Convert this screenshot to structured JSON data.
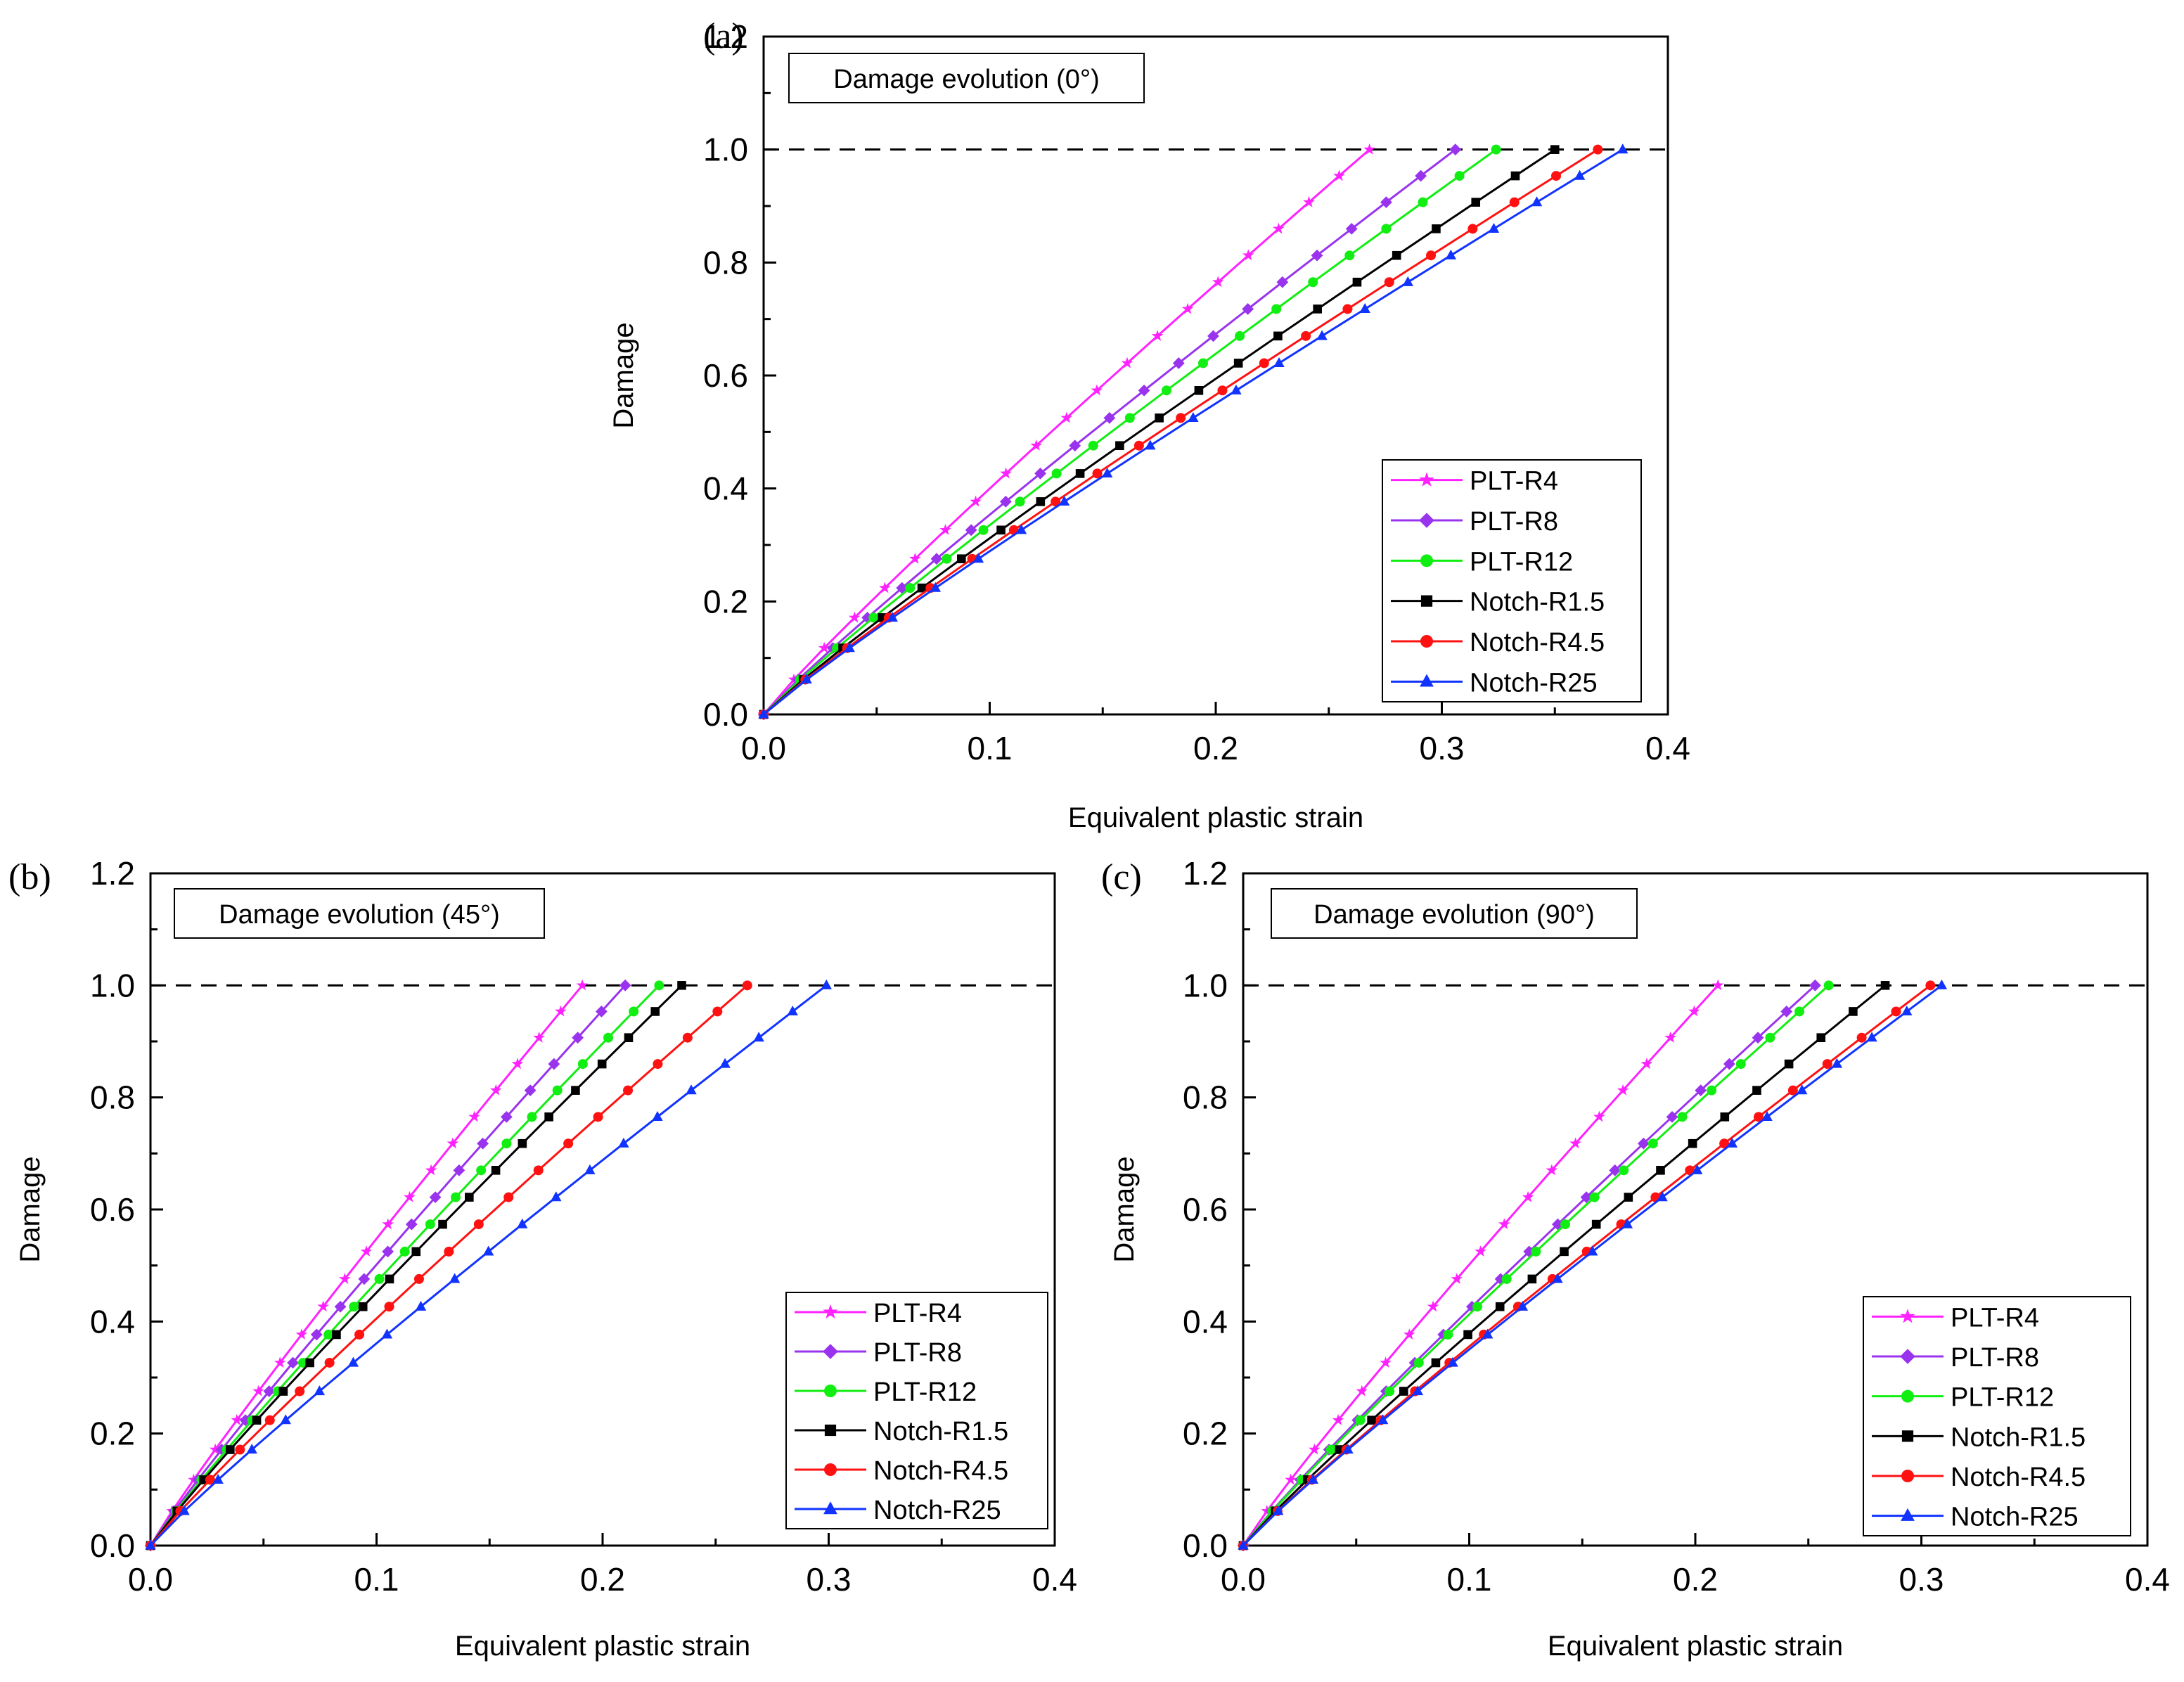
{
  "colors": {
    "PLT-R4": "#ff22ff",
    "PLT-R8": "#9933ee",
    "PLT-R12": "#11ee11",
    "Notch-R1.5": "#000000",
    "Notch-R4.5": "#ff1111",
    "Notch-R25": "#1133ff"
  },
  "chart_data": [
    {
      "type": "line",
      "panel": "(a)",
      "title": "Damage evolution (0°)",
      "xlabel": "Equivalent plastic strain",
      "ylabel": "Damage",
      "xlim": [
        0.0,
        0.4
      ],
      "ylim": [
        0.0,
        1.2
      ],
      "xticks": [
        "0.0",
        "0.1",
        "0.2",
        "0.3",
        "0.4"
      ],
      "yticks": [
        "0.0",
        "0.2",
        "0.4",
        "0.6",
        "0.8",
        "1.0",
        "1.2"
      ],
      "reference_line": 1.0,
      "legend": [
        "PLT-R4",
        "PLT-R8",
        "PLT-R12",
        "Notch-R1.5",
        "Notch-R4.5",
        "Notch-R25"
      ],
      "legend_position": "lower-right",
      "series": [
        {
          "name": "PLT-R4",
          "marker": "star",
          "end_x": 0.268
        },
        {
          "name": "PLT-R8",
          "marker": "diamond",
          "end_x": 0.306
        },
        {
          "name": "PLT-R12",
          "marker": "circle",
          "end_x": 0.324
        },
        {
          "name": "Notch-R1.5",
          "marker": "square",
          "end_x": 0.35
        },
        {
          "name": "Notch-R4.5",
          "marker": "circle",
          "end_x": 0.369
        },
        {
          "name": "Notch-R25",
          "marker": "triangle",
          "end_x": 0.38
        }
      ]
    },
    {
      "type": "line",
      "panel": "(b)",
      "title": "Damage evolution (45°)",
      "xlabel": "Equivalent plastic strain",
      "ylabel": "Damage",
      "xlim": [
        0.0,
        0.4
      ],
      "ylim": [
        0.0,
        1.2
      ],
      "xticks": [
        "0.0",
        "0.1",
        "0.2",
        "0.3",
        "0.4"
      ],
      "yticks": [
        "0.0",
        "0.2",
        "0.4",
        "0.6",
        "0.8",
        "1.0",
        "1.2"
      ],
      "reference_line": 1.0,
      "legend": [
        "PLT-R4",
        "PLT-R8",
        "PLT-R12",
        "Notch-R1.5",
        "Notch-R4.5",
        "Notch-R25"
      ],
      "legend_position": "lower-right",
      "series": [
        {
          "name": "PLT-R4",
          "marker": "star",
          "end_x": 0.191
        },
        {
          "name": "PLT-R8",
          "marker": "diamond",
          "end_x": 0.21
        },
        {
          "name": "PLT-R12",
          "marker": "circle",
          "end_x": 0.225
        },
        {
          "name": "Notch-R1.5",
          "marker": "square",
          "end_x": 0.235
        },
        {
          "name": "Notch-R4.5",
          "marker": "circle",
          "end_x": 0.264
        },
        {
          "name": "Notch-R25",
          "marker": "triangle",
          "end_x": 0.299
        }
      ]
    },
    {
      "type": "line",
      "panel": "(c)",
      "title": "Damage evolution (90°)",
      "xlabel": "Equivalent plastic strain",
      "ylabel": "Damage",
      "xlim": [
        0.0,
        0.4
      ],
      "ylim": [
        0.0,
        1.2
      ],
      "xticks": [
        "0.0",
        "0.1",
        "0.2",
        "0.3",
        "0.4"
      ],
      "yticks": [
        "0.0",
        "0.2",
        "0.4",
        "0.6",
        "0.8",
        "1.0",
        "1.2"
      ],
      "reference_line": 1.0,
      "legend": [
        "PLT-R4",
        "PLT-R8",
        "PLT-R12",
        "Notch-R1.5",
        "Notch-R4.5",
        "Notch-R25"
      ],
      "legend_position": "lower-right",
      "series": [
        {
          "name": "PLT-R4",
          "marker": "star",
          "end_x": 0.21
        },
        {
          "name": "PLT-R8",
          "marker": "diamond",
          "end_x": 0.253
        },
        {
          "name": "PLT-R12",
          "marker": "circle",
          "end_x": 0.259
        },
        {
          "name": "Notch-R1.5",
          "marker": "square",
          "end_x": 0.284
        },
        {
          "name": "Notch-R4.5",
          "marker": "circle",
          "end_x": 0.304
        },
        {
          "name": "Notch-R25",
          "marker": "triangle",
          "end_x": 0.309
        }
      ]
    }
  ]
}
